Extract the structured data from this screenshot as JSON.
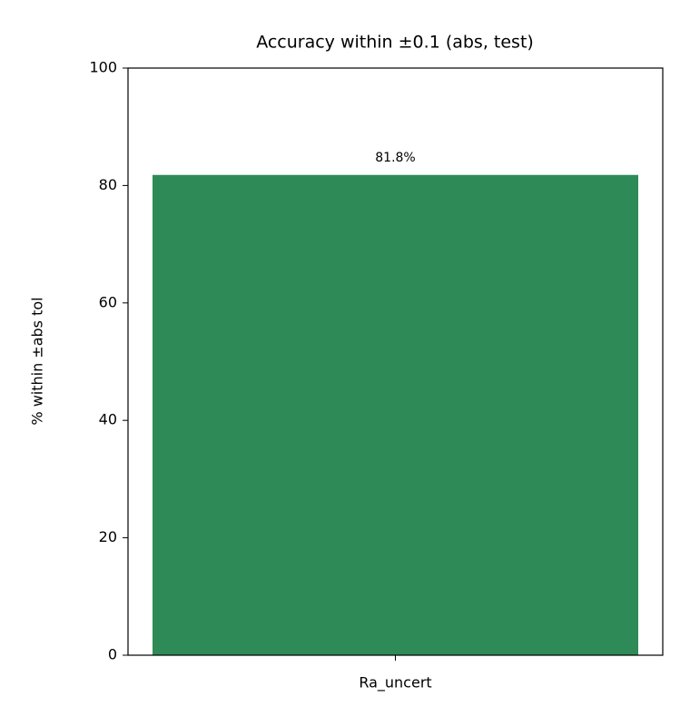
{
  "chart_data": {
    "type": "bar",
    "title": "Accuracy within ±0.1 (abs, test)",
    "ylabel": "% within ±abs tol",
    "categories": [
      "Ra_uncert"
    ],
    "values": [
      81.8
    ],
    "value_labels": [
      "81.8%"
    ],
    "color": "#2e8b57",
    "ylim": [
      0,
      100
    ],
    "yticks": [
      0,
      20,
      40,
      60,
      80,
      100
    ],
    "grid": false
  }
}
